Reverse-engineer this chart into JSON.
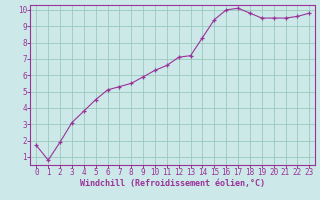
{
  "x": [
    0,
    1,
    2,
    3,
    4,
    5,
    6,
    7,
    8,
    9,
    10,
    11,
    12,
    13,
    14,
    15,
    16,
    17,
    18,
    19,
    20,
    21,
    22,
    23
  ],
  "y": [
    1.7,
    0.8,
    1.9,
    3.1,
    3.8,
    4.5,
    5.1,
    5.3,
    5.5,
    5.9,
    6.3,
    6.6,
    7.1,
    7.2,
    8.3,
    9.4,
    10.0,
    10.1,
    9.8,
    9.5,
    9.5,
    9.5,
    9.6,
    9.8
  ],
  "line_color": "#993399",
  "marker": "+",
  "marker_color": "#993399",
  "background_color": "#cce8e8",
  "grid_color": "#99ccbb",
  "axis_color": "#993399",
  "tick_color": "#993399",
  "xlabel": "Windchill (Refroidissement éolien,°C)",
  "xlabel_color": "#993399",
  "xlim_min": -0.5,
  "xlim_max": 23.5,
  "ylim_min": 0.5,
  "ylim_max": 10.3,
  "yticks": [
    1,
    2,
    3,
    4,
    5,
    6,
    7,
    8,
    9,
    10
  ],
  "xticks": [
    0,
    1,
    2,
    3,
    4,
    5,
    6,
    7,
    8,
    9,
    10,
    11,
    12,
    13,
    14,
    15,
    16,
    17,
    18,
    19,
    20,
    21,
    22,
    23
  ]
}
